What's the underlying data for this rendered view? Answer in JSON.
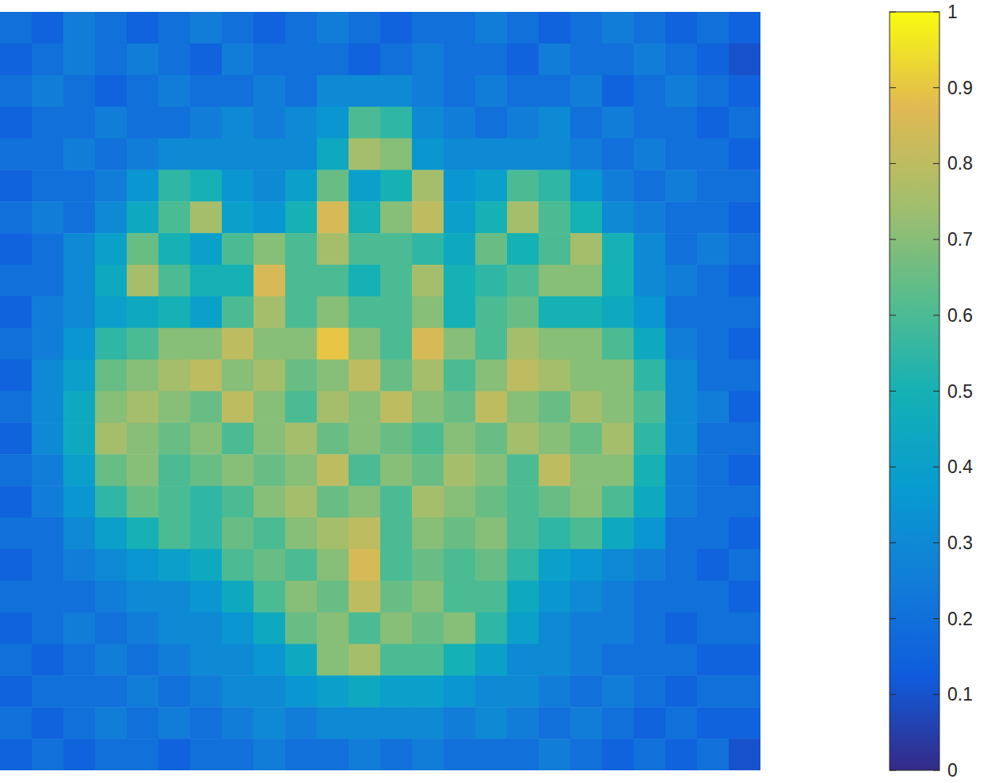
{
  "chart_data": {
    "type": "heatmap",
    "tick_labels": false,
    "color_range": [
      0,
      1
    ],
    "color_ticks": [
      0,
      0.1,
      0.2,
      0.3,
      0.4,
      0.5,
      0.6,
      0.7,
      0.8,
      0.9,
      1
    ],
    "values": [
      [
        0.2,
        0.15,
        0.25,
        0.2,
        0.15,
        0.2,
        0.25,
        0.2,
        0.15,
        0.2,
        0.25,
        0.2,
        0.15,
        0.2,
        0.2,
        0.25,
        0.2,
        0.15,
        0.2,
        0.25,
        0.2,
        0.15,
        0.2,
        0.15
      ],
      [
        0.15,
        0.2,
        0.25,
        0.2,
        0.25,
        0.2,
        0.15,
        0.25,
        0.2,
        0.2,
        0.2,
        0.15,
        0.2,
        0.25,
        0.2,
        0.2,
        0.15,
        0.25,
        0.2,
        0.2,
        0.25,
        0.2,
        0.15,
        0.1
      ],
      [
        0.2,
        0.25,
        0.2,
        0.15,
        0.2,
        0.25,
        0.2,
        0.2,
        0.25,
        0.2,
        0.3,
        0.3,
        0.3,
        0.25,
        0.2,
        0.25,
        0.2,
        0.2,
        0.25,
        0.15,
        0.2,
        0.25,
        0.2,
        0.15
      ],
      [
        0.15,
        0.2,
        0.2,
        0.25,
        0.2,
        0.2,
        0.25,
        0.3,
        0.25,
        0.3,
        0.35,
        0.6,
        0.55,
        0.3,
        0.25,
        0.2,
        0.25,
        0.3,
        0.2,
        0.25,
        0.2,
        0.2,
        0.15,
        0.2
      ],
      [
        0.2,
        0.2,
        0.25,
        0.2,
        0.25,
        0.3,
        0.3,
        0.3,
        0.3,
        0.3,
        0.45,
        0.75,
        0.7,
        0.35,
        0.3,
        0.3,
        0.3,
        0.3,
        0.25,
        0.2,
        0.25,
        0.2,
        0.2,
        0.15
      ],
      [
        0.15,
        0.2,
        0.2,
        0.25,
        0.35,
        0.55,
        0.5,
        0.35,
        0.3,
        0.4,
        0.65,
        0.4,
        0.5,
        0.75,
        0.35,
        0.4,
        0.6,
        0.55,
        0.35,
        0.25,
        0.2,
        0.25,
        0.2,
        0.2
      ],
      [
        0.2,
        0.25,
        0.2,
        0.3,
        0.45,
        0.6,
        0.75,
        0.4,
        0.35,
        0.5,
        0.85,
        0.5,
        0.7,
        0.8,
        0.4,
        0.5,
        0.75,
        0.6,
        0.5,
        0.3,
        0.25,
        0.2,
        0.2,
        0.15
      ],
      [
        0.15,
        0.2,
        0.3,
        0.4,
        0.65,
        0.5,
        0.4,
        0.6,
        0.7,
        0.6,
        0.75,
        0.6,
        0.6,
        0.55,
        0.45,
        0.65,
        0.5,
        0.6,
        0.75,
        0.5,
        0.3,
        0.2,
        0.25,
        0.2
      ],
      [
        0.2,
        0.2,
        0.3,
        0.45,
        0.75,
        0.6,
        0.5,
        0.5,
        0.85,
        0.6,
        0.6,
        0.5,
        0.6,
        0.75,
        0.5,
        0.55,
        0.6,
        0.7,
        0.7,
        0.5,
        0.3,
        0.25,
        0.2,
        0.15
      ],
      [
        0.15,
        0.25,
        0.3,
        0.4,
        0.45,
        0.5,
        0.4,
        0.6,
        0.75,
        0.6,
        0.7,
        0.6,
        0.6,
        0.7,
        0.5,
        0.6,
        0.65,
        0.5,
        0.5,
        0.45,
        0.35,
        0.2,
        0.2,
        0.2
      ],
      [
        0.2,
        0.25,
        0.35,
        0.55,
        0.6,
        0.7,
        0.7,
        0.8,
        0.7,
        0.7,
        0.9,
        0.7,
        0.6,
        0.85,
        0.7,
        0.6,
        0.75,
        0.7,
        0.7,
        0.6,
        0.45,
        0.25,
        0.2,
        0.15
      ],
      [
        0.15,
        0.3,
        0.4,
        0.65,
        0.7,
        0.75,
        0.8,
        0.7,
        0.75,
        0.65,
        0.7,
        0.8,
        0.65,
        0.75,
        0.6,
        0.7,
        0.8,
        0.75,
        0.7,
        0.7,
        0.55,
        0.3,
        0.2,
        0.2
      ],
      [
        0.2,
        0.3,
        0.45,
        0.7,
        0.75,
        0.7,
        0.65,
        0.8,
        0.7,
        0.6,
        0.75,
        0.7,
        0.8,
        0.7,
        0.65,
        0.8,
        0.7,
        0.65,
        0.75,
        0.7,
        0.6,
        0.3,
        0.25,
        0.15
      ],
      [
        0.15,
        0.3,
        0.45,
        0.75,
        0.7,
        0.65,
        0.7,
        0.6,
        0.7,
        0.75,
        0.65,
        0.7,
        0.65,
        0.6,
        0.7,
        0.65,
        0.75,
        0.7,
        0.65,
        0.75,
        0.55,
        0.3,
        0.2,
        0.2
      ],
      [
        0.2,
        0.25,
        0.4,
        0.65,
        0.7,
        0.6,
        0.65,
        0.7,
        0.65,
        0.7,
        0.8,
        0.6,
        0.7,
        0.65,
        0.75,
        0.7,
        0.6,
        0.8,
        0.7,
        0.7,
        0.5,
        0.25,
        0.2,
        0.15
      ],
      [
        0.15,
        0.25,
        0.35,
        0.55,
        0.65,
        0.6,
        0.55,
        0.6,
        0.7,
        0.75,
        0.65,
        0.7,
        0.6,
        0.75,
        0.7,
        0.65,
        0.6,
        0.65,
        0.7,
        0.6,
        0.45,
        0.25,
        0.2,
        0.2
      ],
      [
        0.2,
        0.2,
        0.3,
        0.4,
        0.5,
        0.6,
        0.55,
        0.65,
        0.6,
        0.7,
        0.75,
        0.8,
        0.6,
        0.7,
        0.65,
        0.7,
        0.6,
        0.55,
        0.6,
        0.45,
        0.35,
        0.2,
        0.2,
        0.15
      ],
      [
        0.15,
        0.2,
        0.25,
        0.3,
        0.35,
        0.4,
        0.45,
        0.6,
        0.65,
        0.6,
        0.7,
        0.85,
        0.6,
        0.65,
        0.6,
        0.65,
        0.55,
        0.4,
        0.35,
        0.3,
        0.25,
        0.2,
        0.15,
        0.2
      ],
      [
        0.2,
        0.2,
        0.2,
        0.25,
        0.3,
        0.3,
        0.35,
        0.45,
        0.6,
        0.7,
        0.65,
        0.8,
        0.65,
        0.7,
        0.6,
        0.6,
        0.45,
        0.35,
        0.3,
        0.25,
        0.2,
        0.2,
        0.2,
        0.15
      ],
      [
        0.15,
        0.2,
        0.25,
        0.2,
        0.25,
        0.3,
        0.3,
        0.35,
        0.45,
        0.65,
        0.7,
        0.6,
        0.7,
        0.65,
        0.7,
        0.55,
        0.4,
        0.3,
        0.25,
        0.25,
        0.2,
        0.15,
        0.2,
        0.2
      ],
      [
        0.2,
        0.15,
        0.2,
        0.25,
        0.2,
        0.25,
        0.3,
        0.3,
        0.35,
        0.45,
        0.7,
        0.75,
        0.6,
        0.6,
        0.5,
        0.4,
        0.3,
        0.3,
        0.25,
        0.2,
        0.2,
        0.2,
        0.15,
        0.15
      ],
      [
        0.15,
        0.2,
        0.2,
        0.2,
        0.25,
        0.2,
        0.25,
        0.3,
        0.3,
        0.35,
        0.4,
        0.45,
        0.4,
        0.4,
        0.35,
        0.3,
        0.3,
        0.25,
        0.2,
        0.25,
        0.2,
        0.15,
        0.2,
        0.2
      ],
      [
        0.2,
        0.15,
        0.2,
        0.25,
        0.2,
        0.25,
        0.2,
        0.25,
        0.3,
        0.25,
        0.3,
        0.3,
        0.3,
        0.3,
        0.25,
        0.3,
        0.25,
        0.2,
        0.25,
        0.2,
        0.15,
        0.2,
        0.15,
        0.15
      ],
      [
        0.15,
        0.2,
        0.15,
        0.2,
        0.2,
        0.15,
        0.2,
        0.2,
        0.25,
        0.2,
        0.2,
        0.25,
        0.2,
        0.25,
        0.2,
        0.2,
        0.2,
        0.25,
        0.2,
        0.15,
        0.2,
        0.15,
        0.2,
        0.1
      ]
    ]
  }
}
